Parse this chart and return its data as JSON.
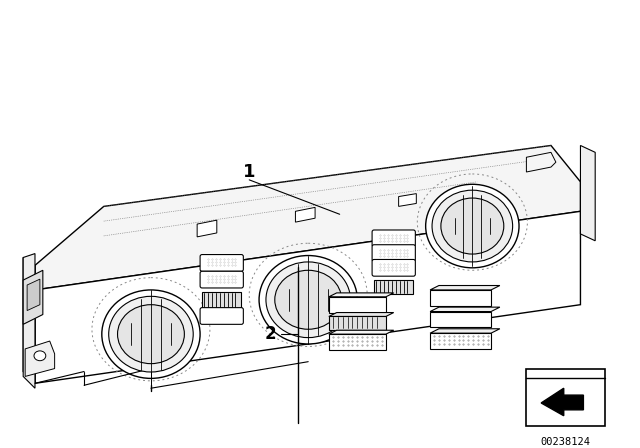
{
  "bg_color": "#ffffff",
  "line_color": "#000000",
  "dashed_color": "#888888",
  "dotted_color": "#666666",
  "part_number_text": "00238124",
  "label1": "1",
  "label2": "2",
  "fig_width": 6.4,
  "fig_height": 4.48,
  "dpi": 100
}
